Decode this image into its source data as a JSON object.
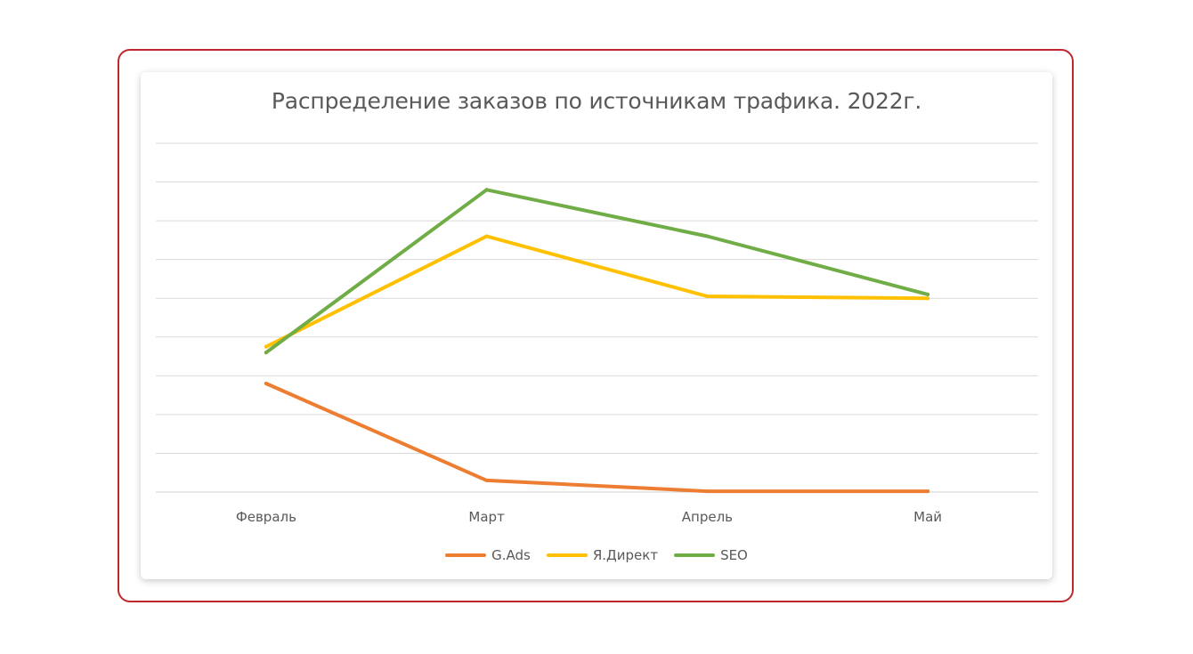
{
  "chart_data": {
    "type": "line",
    "title": "Распределение заказов по источникам трафика. 2022г.",
    "categories": [
      "Февраль",
      "Март",
      "Апрель",
      "Май"
    ],
    "ylim": [
      0,
      9
    ],
    "grid": true,
    "legend_position": "bottom",
    "series": [
      {
        "name": "G.Ads",
        "color": "#ED7D31",
        "values": [
          2.8,
          0.3,
          0.02,
          0.02
        ]
      },
      {
        "name": "Я.Директ",
        "color": "#FFC000",
        "values": [
          3.75,
          6.6,
          5.05,
          5.0
        ]
      },
      {
        "name": "SEO",
        "color": "#70AD47",
        "values": [
          3.6,
          7.8,
          6.6,
          5.1
        ]
      }
    ]
  }
}
